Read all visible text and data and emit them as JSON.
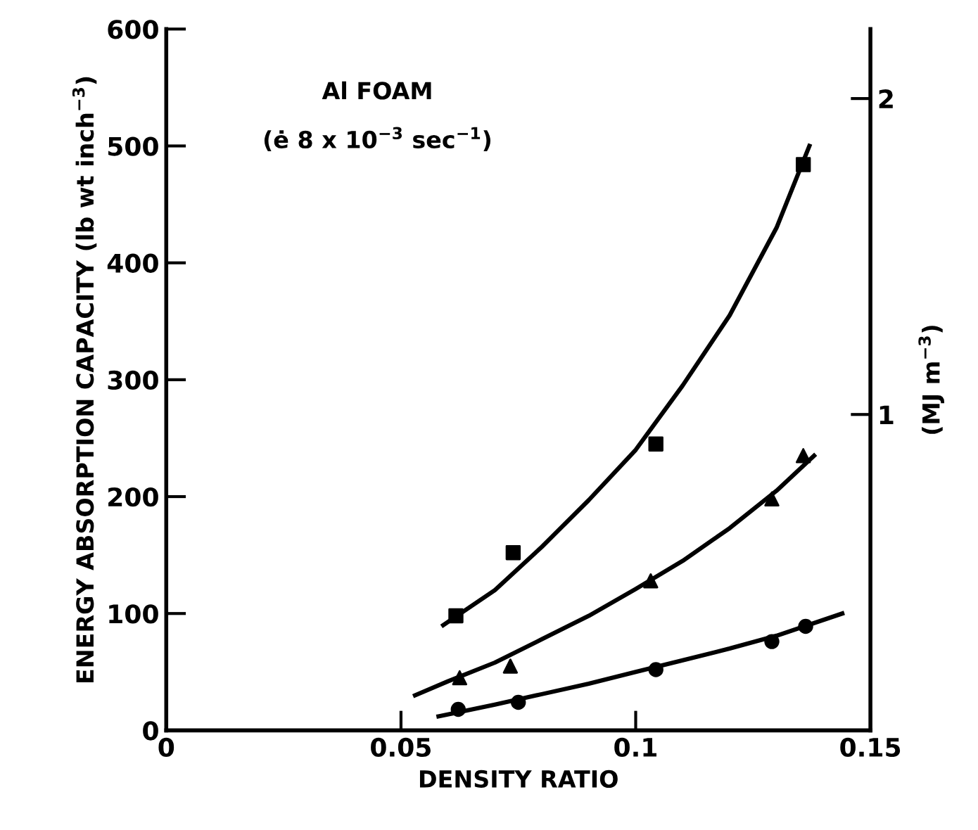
{
  "chart_data": {
    "type": "scatter",
    "xlabel": "DENSITY RATIO",
    "ylabel": "ENERGY ABSORPTION CAPACITY (lb wt inch$^{−3}$)",
    "y2label": "(MJ m$^{−3}$)",
    "annotations": [
      "Al FOAM",
      "(ė 8 x 10$^{−3}$ sec$^{−1}$)"
    ],
    "xlim": [
      0,
      0.15
    ],
    "xticks": [
      0,
      0.05,
      0.1,
      0.15
    ],
    "ylim": [
      0,
      600
    ],
    "yticks": [
      0,
      100,
      200,
      300,
      400,
      500,
      600
    ],
    "y2lim": [
      0,
      2.22
    ],
    "y2ticks": [
      1,
      2
    ],
    "grid": false,
    "legend": false,
    "series": [
      {
        "marker": "square",
        "color": "#000000",
        "x": [
          0.0617,
          0.0739,
          0.1043,
          0.1357
        ],
        "values": [
          98,
          152,
          245,
          484
        ]
      },
      {
        "marker": "triangle",
        "color": "#000000",
        "x": [
          0.0625,
          0.0733,
          0.1032,
          0.129,
          0.1357
        ],
        "values": [
          45,
          55,
          128,
          198,
          235
        ]
      },
      {
        "marker": "circle",
        "color": "#000000",
        "x": [
          0.0622,
          0.075,
          0.1043,
          0.129,
          0.1362
        ],
        "values": [
          18,
          24,
          52,
          76,
          89
        ]
      },
      {
        "type": "line",
        "marker": "none",
        "line_style": "solid",
        "color": "#000000",
        "x": [
          0.059,
          0.07,
          0.08,
          0.09,
          0.1,
          0.11,
          0.12,
          0.13,
          0.137
        ],
        "values": [
          90,
          120,
          157,
          197,
          240,
          295,
          355,
          430,
          500
        ]
      },
      {
        "type": "line",
        "marker": "none",
        "line_style": "solid",
        "color": "#000000",
        "x": [
          0.053,
          0.06,
          0.07,
          0.08,
          0.09,
          0.1,
          0.11,
          0.12,
          0.13,
          0.138
        ],
        "values": [
          30,
          42,
          58,
          78,
          98,
          121,
          145,
          173,
          205,
          235
        ]
      },
      {
        "type": "line",
        "marker": "none",
        "line_style": "solid",
        "color": "#000000",
        "x": [
          0.058,
          0.07,
          0.08,
          0.09,
          0.1,
          0.11,
          0.12,
          0.13,
          0.144
        ],
        "values": [
          12,
          22,
          31,
          40,
          50,
          60,
          70,
          81,
          100
        ]
      }
    ]
  }
}
